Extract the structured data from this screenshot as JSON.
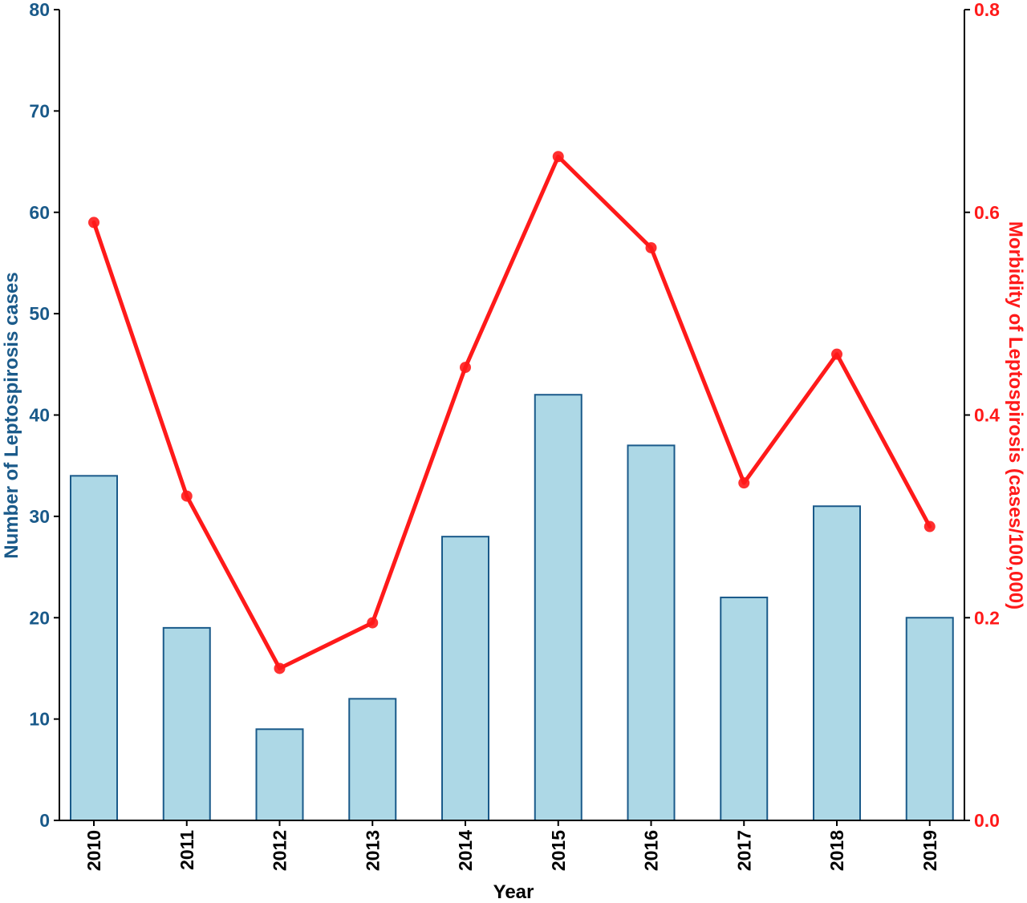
{
  "chart_data": {
    "type": "bar",
    "categories": [
      "2010",
      "2011",
      "2012",
      "2013",
      "2014",
      "2015",
      "2016",
      "2017",
      "2018",
      "2019"
    ],
    "series": [
      {
        "chart_type": "bar",
        "axis": "left",
        "values": [
          34,
          19,
          9,
          12,
          28,
          42,
          37,
          22,
          31,
          20
        ],
        "fill": "#add8e6",
        "stroke": "#1a5a8a"
      },
      {
        "chart_type": "line",
        "axis": "right",
        "values": [
          0.59,
          0.32,
          0.15,
          0.195,
          0.447,
          0.655,
          0.565,
          0.333,
          0.46,
          0.29
        ],
        "color": "#ff1a1a"
      }
    ],
    "xlabel": "Year",
    "ylabel_left": "Number of Leptospirosis cases",
    "ylabel_right": "Morbidity of Leptospirosis (cases/100,000)",
    "ylim_left": [
      0,
      80
    ],
    "ylim_right": [
      0,
      0.8
    ],
    "yticks_left": [
      "0",
      "10",
      "20",
      "30",
      "40",
      "50",
      "60",
      "70",
      "80"
    ],
    "yticks_right": [
      "0.0",
      "0.2",
      "0.4",
      "0.6",
      "0.8"
    ],
    "left_axis_color": "#1a5a8a",
    "right_axis_color": "#ff1a1a",
    "grid": false
  }
}
